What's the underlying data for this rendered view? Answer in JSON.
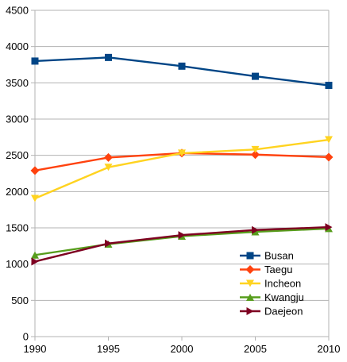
{
  "chart_data": {
    "type": "line",
    "title": "",
    "xlabel": "",
    "ylabel": "",
    "x": [
      1990,
      1995,
      2000,
      2005,
      2010
    ],
    "x_ticks": [
      "1990",
      "1995",
      "2000",
      "2005",
      "2010"
    ],
    "ylim": [
      0,
      4500
    ],
    "y_ticks": [
      "0",
      "500",
      "1000",
      "1500",
      "2000",
      "2500",
      "3000",
      "3500",
      "4000",
      "4500"
    ],
    "grid": "horizontal",
    "legend_position": "bottom-right",
    "series": [
      {
        "name": "Busan",
        "color": "#004586",
        "marker": "square",
        "values": [
          3800,
          3850,
          3730,
          3590,
          3465
        ]
      },
      {
        "name": "Taegu",
        "color": "#ff420e",
        "marker": "diamond",
        "values": [
          2290,
          2470,
          2530,
          2510,
          2475
        ]
      },
      {
        "name": "Incheon",
        "color": "#ffd320",
        "marker": "triangle-down",
        "values": [
          1905,
          2335,
          2530,
          2580,
          2715
        ]
      },
      {
        "name": "Kwangju",
        "color": "#579d1c",
        "marker": "triangle-up",
        "values": [
          1125,
          1275,
          1385,
          1445,
          1490
        ]
      },
      {
        "name": "Daejeon",
        "color": "#7e0021",
        "marker": "triangle-right",
        "values": [
          1035,
          1285,
          1400,
          1470,
          1510
        ]
      }
    ]
  }
}
